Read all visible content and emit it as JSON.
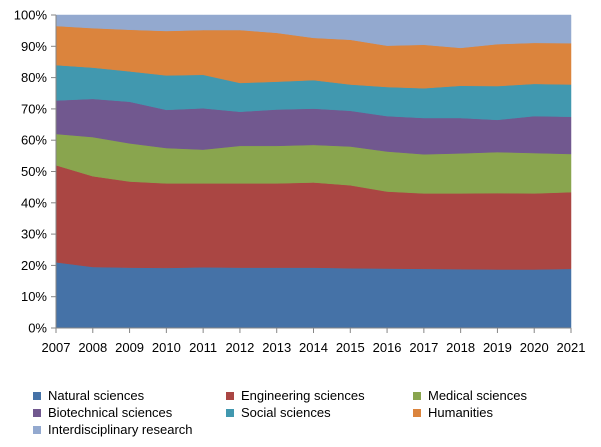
{
  "chart_data": {
    "type": "area",
    "stacked": true,
    "normalized_percent": true,
    "title": "",
    "xlabel": "",
    "ylabel": "",
    "x": [
      "2007",
      "2008",
      "2009",
      "2010",
      "2011",
      "2012",
      "2013",
      "2014",
      "2015",
      "2016",
      "2017",
      "2018",
      "2019",
      "2020",
      "2021"
    ],
    "ylim": [
      0,
      100
    ],
    "yticks": [
      "0%",
      "10%",
      "20%",
      "30%",
      "40%",
      "50%",
      "60%",
      "70%",
      "80%",
      "90%",
      "100%"
    ],
    "grid": false,
    "legend_position": "bottom",
    "series": [
      {
        "name": "Natural sciences",
        "color": "#4572A7",
        "values": [
          21.0,
          19.5,
          19.3,
          19.2,
          19.4,
          19.3,
          19.3,
          19.3,
          19.1,
          19.0,
          18.9,
          18.8,
          18.7,
          18.7,
          18.9
        ]
      },
      {
        "name": "Engineering sciences",
        "color": "#AA4643",
        "values": [
          31.0,
          29.0,
          27.5,
          27.0,
          26.8,
          26.9,
          26.9,
          27.2,
          26.5,
          24.6,
          24.1,
          24.2,
          24.4,
          24.3,
          24.5
        ]
      },
      {
        "name": "Medical sciences",
        "color": "#89A54E",
        "values": [
          10.0,
          12.5,
          12.2,
          11.3,
          10.8,
          12.0,
          12.0,
          12.0,
          12.4,
          12.8,
          12.5,
          12.8,
          13.1,
          12.9,
          12.2
        ]
      },
      {
        "name": "Biotechnical sciences",
        "color": "#71588F",
        "values": [
          10.7,
          12.2,
          13.3,
          12.2,
          13.2,
          10.9,
          11.6,
          11.6,
          11.4,
          11.3,
          11.6,
          11.3,
          10.3,
          11.8,
          11.9
        ]
      },
      {
        "name": "Social sciences",
        "color": "#4198AF",
        "values": [
          11.3,
          10.0,
          9.7,
          11.0,
          10.7,
          9.2,
          8.9,
          9.1,
          8.4,
          9.3,
          9.5,
          10.3,
          10.8,
          10.3,
          10.3
        ]
      },
      {
        "name": "Humanities",
        "color": "#DB843D",
        "values": [
          12.5,
          12.6,
          13.3,
          14.2,
          14.3,
          16.9,
          15.6,
          13.5,
          14.3,
          13.2,
          13.9,
          12.1,
          13.4,
          13.1,
          13.2
        ]
      },
      {
        "name": "Interdisciplinary research",
        "color": "#93A9CF",
        "values": [
          3.5,
          4.2,
          4.7,
          5.1,
          4.8,
          4.8,
          5.7,
          7.3,
          7.9,
          9.8,
          9.5,
          10.5,
          9.3,
          8.9,
          9.0
        ]
      }
    ]
  }
}
